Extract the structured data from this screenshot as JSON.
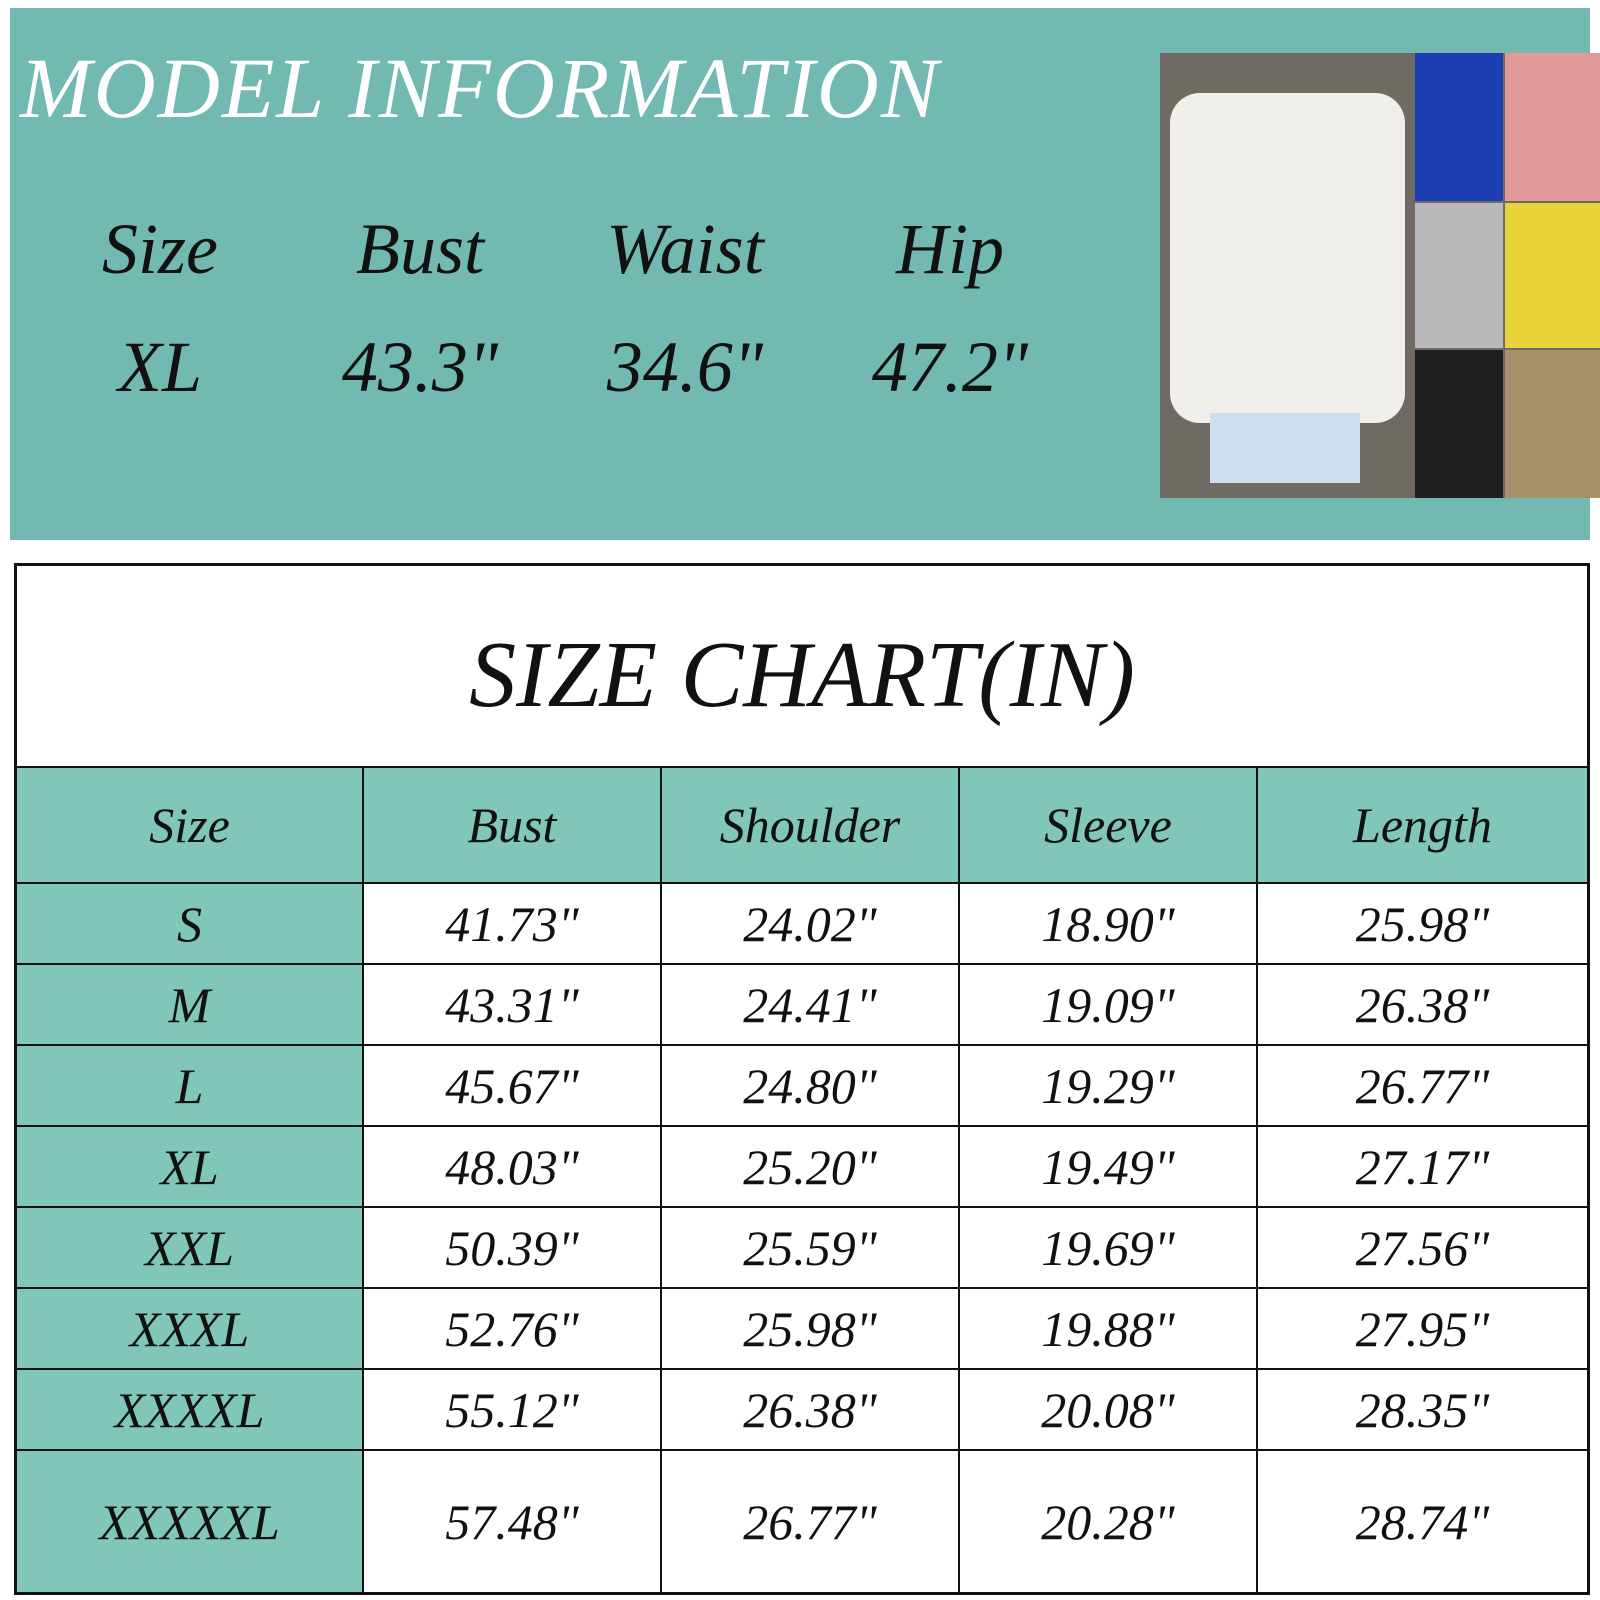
{
  "model": {
    "title": "MODEL INFORMATION",
    "headers": [
      "Size",
      "Bust",
      "Waist",
      "Hip"
    ],
    "values": [
      "XL",
      "43.3\"",
      "34.6\"",
      "47.2\""
    ]
  },
  "size_chart": {
    "title": "SIZE CHART(IN)",
    "headers": [
      "Size",
      "Bust",
      "Shoulder",
      "Sleeve",
      "Length"
    ],
    "rows": [
      [
        "S",
        "41.73\"",
        "24.02\"",
        "18.90\"",
        "25.98\""
      ],
      [
        "M",
        "43.31\"",
        "24.41\"",
        "19.09\"",
        "26.38\""
      ],
      [
        "L",
        "45.67\"",
        "24.80\"",
        "19.29\"",
        "26.77\""
      ],
      [
        "XL",
        "48.03\"",
        "25.20\"",
        "19.49\"",
        "27.17\""
      ],
      [
        "XXL",
        "50.39\"",
        "25.59\"",
        "19.69\"",
        "27.56\""
      ],
      [
        "XXXL",
        "52.76\"",
        "25.98\"",
        "19.88\"",
        "27.95\""
      ],
      [
        "XXXXL",
        "55.12\"",
        "26.38\"",
        "20.08\"",
        "28.35\""
      ],
      [
        "XXXXXL",
        "57.48\"",
        "26.77\"",
        "20.28\"",
        "28.74\""
      ]
    ]
  }
}
